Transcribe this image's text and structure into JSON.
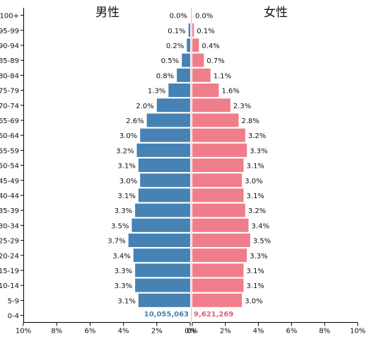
{
  "chart_data": {
    "type": "bar",
    "subtype": "population-pyramid",
    "colors": {
      "male": "#4682b4",
      "female": "#f07e8a",
      "male_total": "#4682b4",
      "female_total": "#e05c7a"
    },
    "male_label": "男性",
    "female_label": "女性",
    "categories": [
      "0-4",
      "5-9",
      "10-14",
      "15-19",
      "20-24",
      "25-29",
      "30-34",
      "35-39",
      "40-44",
      "45-49",
      "50-54",
      "55-59",
      "60-64",
      "65-69",
      "70-74",
      "75-79",
      "80-84",
      "85-89",
      "90-94",
      "95-99",
      "100+"
    ],
    "series": [
      {
        "name": "男性",
        "values": [
          null,
          3.1,
          3.3,
          3.3,
          3.4,
          3.7,
          3.5,
          3.3,
          3.1,
          3.0,
          3.1,
          3.2,
          3.0,
          2.6,
          2.0,
          1.3,
          0.8,
          0.5,
          0.2,
          0.1,
          0.0
        ],
        "labels": [
          "",
          "3.1%",
          "3.3%",
          "3.3%",
          "3.4%",
          "3.7%",
          "3.5%",
          "3.3%",
          "3.1%",
          "3.0%",
          "3.1%",
          "3.2%",
          "3.0%",
          "2.6%",
          "2.0%",
          "1.3%",
          "0.8%",
          "0.5%",
          "0.2%",
          "0.1%",
          "0.0%"
        ]
      },
      {
        "name": "女性",
        "values": [
          null,
          3.0,
          3.1,
          3.1,
          3.3,
          3.5,
          3.4,
          3.2,
          3.1,
          3.0,
          3.1,
          3.3,
          3.2,
          2.8,
          2.3,
          1.6,
          1.1,
          0.7,
          0.4,
          0.1,
          0.0
        ],
        "labels": [
          "",
          "3.0%",
          "3.1%",
          "3.1%",
          "3.3%",
          "3.5%",
          "3.4%",
          "3.2%",
          "3.1%",
          "3.0%",
          "3.1%",
          "3.3%",
          "3.2%",
          "2.8%",
          "2.3%",
          "1.6%",
          "1.1%",
          "0.7%",
          "0.4%",
          "0.1%",
          "0.0%"
        ]
      }
    ],
    "totals": {
      "male": "10,055,063",
      "female": "9,621,269"
    },
    "xlim": [
      0,
      10
    ],
    "x_ticks": [
      10,
      8,
      6,
      4,
      2,
      0
    ],
    "x_tick_labels_left": [
      "10%",
      "8%",
      "6%",
      "4%",
      "2%",
      "0%"
    ],
    "x_tick_labels_right": [
      "0%",
      "2%",
      "4%",
      "6%",
      "8%",
      "10%"
    ],
    "grid": false
  }
}
